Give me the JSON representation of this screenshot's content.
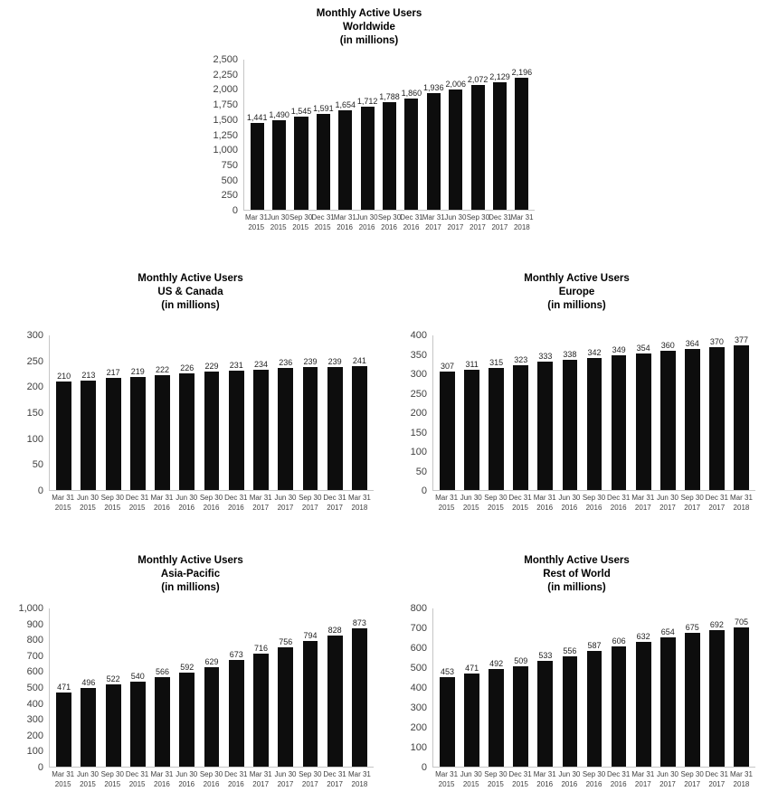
{
  "page": {
    "background": "#ffffff"
  },
  "colors": {
    "bar": "#0d0d0d",
    "axis_line": "#c6c6c6",
    "tick_text": "#404040",
    "value_label_text": "#1f1f1f",
    "title_text": "#000000"
  },
  "chart_data": [
    {
      "id": "worldwide",
      "type": "bar",
      "title": "Monthly Active Users",
      "region": "Worldwide",
      "unit_label": "(in millions)",
      "categories": [
        "Mar 31 2015",
        "Jun 30 2015",
        "Sep 30 2015",
        "Dec 31 2015",
        "Mar 31 2016",
        "Jun 30 2016",
        "Sep 30 2016",
        "Dec 31 2016",
        "Mar 31 2017",
        "Jun 30 2017",
        "Sep 30 2017",
        "Dec 31 2017",
        "Mar 31 2018"
      ],
      "values": [
        1441,
        1490,
        1545,
        1591,
        1654,
        1712,
        1788,
        1860,
        1936,
        2006,
        2072,
        2129,
        2196
      ],
      "ylim": [
        0,
        2500
      ],
      "ytick_step": 250,
      "grid": false,
      "legend": "none",
      "value_labels": "above-bars"
    },
    {
      "id": "us_canada",
      "type": "bar",
      "title": "Monthly Active Users",
      "region": "US & Canada",
      "unit_label": "(in millions)",
      "categories": [
        "Mar 31 2015",
        "Jun 30 2015",
        "Sep 30 2015",
        "Dec 31 2015",
        "Mar 31 2016",
        "Jun 30 2016",
        "Sep 30 2016",
        "Dec 31 2016",
        "Mar 31 2017",
        "Jun 30 2017",
        "Sep 30 2017",
        "Dec 31 2017",
        "Mar 31 2018"
      ],
      "values": [
        210,
        213,
        217,
        219,
        222,
        226,
        229,
        231,
        234,
        236,
        239,
        239,
        241
      ],
      "ylim": [
        0,
        300
      ],
      "ytick_step": 50,
      "grid": false,
      "legend": "none",
      "value_labels": "above-bars"
    },
    {
      "id": "europe",
      "type": "bar",
      "title": "Monthly Active Users",
      "region": "Europe",
      "unit_label": "(in millions)",
      "categories": [
        "Mar 31 2015",
        "Jun 30 2015",
        "Sep 30 2015",
        "Dec 31 2015",
        "Mar 31 2016",
        "Jun 30 2016",
        "Sep 30 2016",
        "Dec 31 2016",
        "Mar 31 2017",
        "Jun 30 2017",
        "Sep 30 2017",
        "Dec 31 2017",
        "Mar 31 2018"
      ],
      "values": [
        307,
        311,
        315,
        323,
        333,
        338,
        342,
        349,
        354,
        360,
        364,
        370,
        377
      ],
      "ylim": [
        0,
        400
      ],
      "ytick_step": 50,
      "grid": false,
      "legend": "none",
      "value_labels": "above-bars"
    },
    {
      "id": "asia_pacific",
      "type": "bar",
      "title": "Monthly Active Users",
      "region": "Asia-Pacific",
      "unit_label": "(in millions)",
      "categories": [
        "Mar 31 2015",
        "Jun 30 2015",
        "Sep 30 2015",
        "Dec 31 2015",
        "Mar 31 2016",
        "Jun 30 2016",
        "Sep 30 2016",
        "Dec 31 2016",
        "Mar 31 2017",
        "Jun 30 2017",
        "Sep 30 2017",
        "Dec 31 2017",
        "Mar 31 2018"
      ],
      "values": [
        471,
        496,
        522,
        540,
        566,
        592,
        629,
        673,
        716,
        756,
        794,
        828,
        873
      ],
      "ylim": [
        0,
        1000
      ],
      "ytick_step": 100,
      "grid": false,
      "legend": "none",
      "value_labels": "above-bars"
    },
    {
      "id": "rest_of_world",
      "type": "bar",
      "title": "Monthly Active Users",
      "region": "Rest of World",
      "unit_label": "(in millions)",
      "categories": [
        "Mar 31 2015",
        "Jun 30 2015",
        "Sep 30 2015",
        "Dec 31 2015",
        "Mar 31 2016",
        "Jun 30 2016",
        "Sep 30 2016",
        "Dec 31 2016",
        "Mar 31 2017",
        "Jun 30 2017",
        "Sep 30 2017",
        "Dec 31 2017",
        "Mar 31 2018"
      ],
      "values": [
        453,
        471,
        492,
        509,
        533,
        556,
        587,
        606,
        632,
        654,
        675,
        692,
        705
      ],
      "ylim": [
        0,
        800
      ],
      "ytick_step": 100,
      "grid": false,
      "legend": "none",
      "value_labels": "above-bars"
    }
  ]
}
